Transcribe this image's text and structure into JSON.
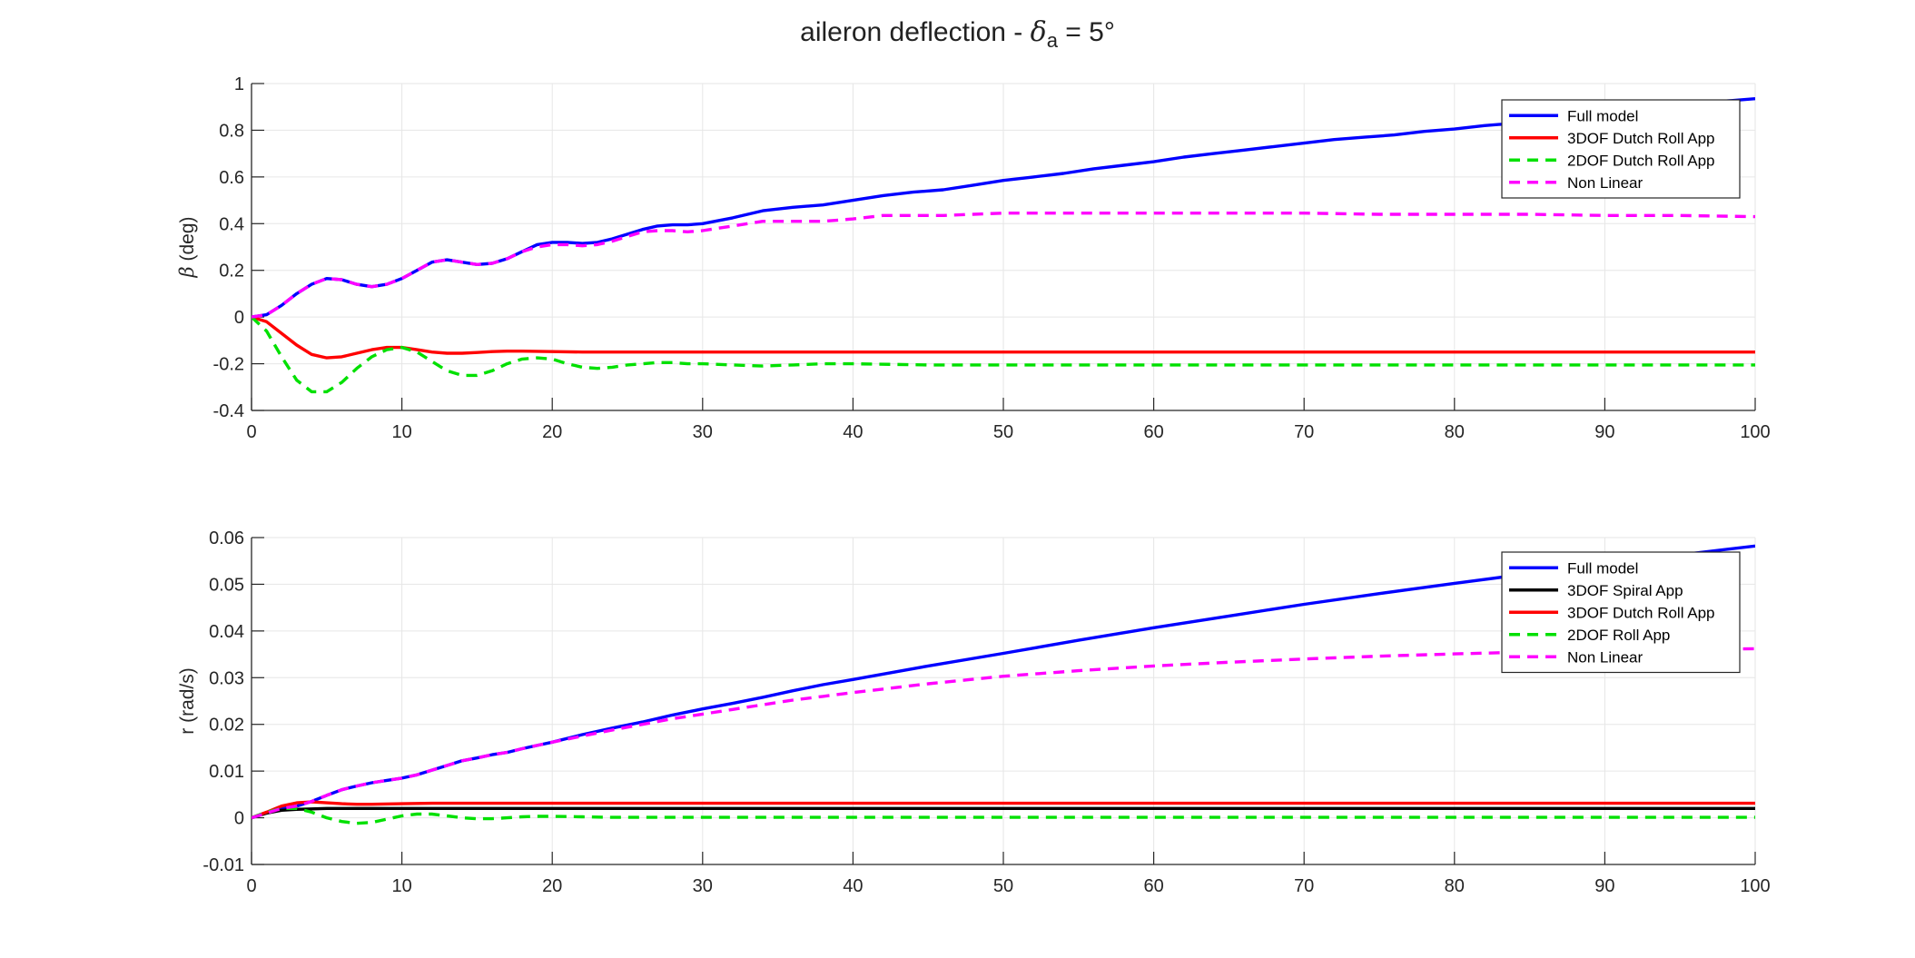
{
  "figure": {
    "title_text": "aileron deflection - ",
    "title_symbol": "δ",
    "title_subscript": "a",
    "title_suffix": " = 5°"
  },
  "chart_data": [
    {
      "type": "line",
      "xlabel": "",
      "ylabel_symbol": "β",
      "ylabel": " (deg)",
      "xlim": [
        0,
        100
      ],
      "ylim": [
        -0.4,
        1
      ],
      "xticks": [
        "0",
        "10",
        "20",
        "30",
        "40",
        "50",
        "60",
        "70",
        "80",
        "90",
        "100"
      ],
      "yticks": [
        "-0.4",
        "-0.2",
        "0",
        "0.2",
        "0.4",
        "0.6",
        "0.8",
        "1"
      ],
      "grid": true,
      "legend_position": "top-right",
      "series": [
        {
          "name": "Full model",
          "color": "#0000ff",
          "dash": false,
          "x": [
            0,
            1,
            2,
            3,
            4,
            5,
            6,
            7,
            8,
            9,
            10,
            11,
            12,
            13,
            14,
            15,
            16,
            17,
            18,
            19,
            20,
            21,
            22,
            23,
            24,
            25,
            26,
            27,
            28,
            29,
            30,
            32,
            34,
            36,
            38,
            40,
            42,
            44,
            46,
            48,
            50,
            52,
            54,
            56,
            58,
            60,
            62,
            64,
            66,
            68,
            70,
            72,
            74,
            76,
            78,
            80,
            82,
            84,
            86,
            88,
            90,
            92,
            94,
            96,
            98,
            100
          ],
          "y": [
            0,
            0.01,
            0.05,
            0.1,
            0.14,
            0.165,
            0.16,
            0.14,
            0.13,
            0.14,
            0.165,
            0.2,
            0.235,
            0.245,
            0.235,
            0.225,
            0.23,
            0.25,
            0.28,
            0.31,
            0.32,
            0.32,
            0.315,
            0.32,
            0.335,
            0.355,
            0.375,
            0.39,
            0.395,
            0.395,
            0.4,
            0.425,
            0.455,
            0.47,
            0.48,
            0.5,
            0.52,
            0.535,
            0.545,
            0.565,
            0.585,
            0.6,
            0.615,
            0.635,
            0.65,
            0.665,
            0.685,
            0.7,
            0.715,
            0.73,
            0.745,
            0.76,
            0.77,
            0.78,
            0.795,
            0.805,
            0.82,
            0.83,
            0.845,
            0.86,
            0.87,
            0.885,
            0.9,
            0.91,
            0.925,
            0.935
          ]
        },
        {
          "name": "3DOF Dutch Roll App",
          "color": "#ff0000",
          "dash": false,
          "x": [
            0,
            1,
            2,
            3,
            4,
            5,
            6,
            7,
            8,
            9,
            10,
            11,
            12,
            13,
            14,
            15,
            16,
            17,
            18,
            20,
            22,
            25,
            30,
            40,
            50,
            60,
            70,
            80,
            90,
            100
          ],
          "y": [
            0,
            -0.02,
            -0.07,
            -0.12,
            -0.16,
            -0.175,
            -0.17,
            -0.155,
            -0.14,
            -0.13,
            -0.13,
            -0.14,
            -0.15,
            -0.155,
            -0.155,
            -0.152,
            -0.148,
            -0.146,
            -0.146,
            -0.148,
            -0.15,
            -0.15,
            -0.15,
            -0.15,
            -0.15,
            -0.15,
            -0.15,
            -0.15,
            -0.15,
            -0.15
          ]
        },
        {
          "name": "2DOF Dutch Roll App",
          "color": "#00e000",
          "dash": true,
          "x": [
            0,
            1,
            2,
            3,
            4,
            5,
            6,
            7,
            8,
            9,
            10,
            11,
            12,
            13,
            14,
            15,
            16,
            17,
            18,
            19,
            20,
            21,
            22,
            23,
            24,
            25,
            26,
            27,
            28,
            29,
            30,
            32,
            34,
            36,
            38,
            40,
            45,
            50,
            60,
            70,
            80,
            90,
            100
          ],
          "y": [
            0,
            -0.06,
            -0.17,
            -0.27,
            -0.32,
            -0.32,
            -0.28,
            -0.22,
            -0.17,
            -0.14,
            -0.13,
            -0.15,
            -0.19,
            -0.23,
            -0.25,
            -0.25,
            -0.23,
            -0.2,
            -0.18,
            -0.175,
            -0.18,
            -0.2,
            -0.215,
            -0.22,
            -0.215,
            -0.205,
            -0.2,
            -0.195,
            -0.195,
            -0.2,
            -0.2,
            -0.205,
            -0.21,
            -0.205,
            -0.2,
            -0.2,
            -0.205,
            -0.205,
            -0.205,
            -0.205,
            -0.205,
            -0.205,
            -0.205
          ]
        },
        {
          "name": "Non Linear",
          "color": "#ff00ff",
          "dash": true,
          "x": [
            0,
            1,
            2,
            3,
            4,
            5,
            6,
            7,
            8,
            9,
            10,
            11,
            12,
            13,
            14,
            15,
            16,
            17,
            18,
            19,
            20,
            21,
            22,
            23,
            24,
            25,
            26,
            27,
            28,
            29,
            30,
            32,
            34,
            36,
            38,
            40,
            42,
            44,
            46,
            48,
            50,
            52,
            55,
            60,
            65,
            70,
            75,
            80,
            85,
            90,
            95,
            100
          ],
          "y": [
            0,
            0.01,
            0.05,
            0.1,
            0.14,
            0.165,
            0.16,
            0.14,
            0.13,
            0.14,
            0.165,
            0.2,
            0.235,
            0.245,
            0.235,
            0.225,
            0.23,
            0.25,
            0.28,
            0.3,
            0.31,
            0.31,
            0.305,
            0.31,
            0.325,
            0.345,
            0.365,
            0.37,
            0.37,
            0.365,
            0.37,
            0.39,
            0.41,
            0.41,
            0.41,
            0.42,
            0.435,
            0.435,
            0.435,
            0.44,
            0.445,
            0.445,
            0.445,
            0.445,
            0.445,
            0.445,
            0.44,
            0.44,
            0.44,
            0.435,
            0.435,
            0.43
          ]
        }
      ]
    },
    {
      "type": "line",
      "xlabel": "",
      "ylabel_symbol": "",
      "ylabel": "r (rad/s)",
      "xlim": [
        0,
        100
      ],
      "ylim": [
        -0.01,
        0.06
      ],
      "xticks": [
        "0",
        "10",
        "20",
        "30",
        "40",
        "50",
        "60",
        "70",
        "80",
        "90",
        "100"
      ],
      "yticks": [
        "-0.01",
        "0",
        "0.01",
        "0.02",
        "0.03",
        "0.04",
        "0.05",
        "0.06"
      ],
      "grid": true,
      "legend_position": "top-right",
      "series": [
        {
          "name": "Full model",
          "color": "#0000ff",
          "dash": false,
          "x": [
            0,
            1,
            2,
            3,
            4,
            5,
            6,
            7,
            8,
            9,
            10,
            11,
            12,
            13,
            14,
            15,
            16,
            17,
            18,
            19,
            20,
            22,
            24,
            26,
            28,
            30,
            32,
            34,
            36,
            38,
            40,
            45,
            50,
            55,
            60,
            65,
            70,
            75,
            80,
            85,
            90,
            95,
            100
          ],
          "y": [
            0,
            0.001,
            0.002,
            0.0025,
            0.0035,
            0.0048,
            0.006,
            0.0068,
            0.0075,
            0.008,
            0.0085,
            0.0092,
            0.0102,
            0.0112,
            0.0122,
            0.0128,
            0.0135,
            0.014,
            0.0148,
            0.0155,
            0.0162,
            0.0178,
            0.0192,
            0.0205,
            0.022,
            0.0233,
            0.0245,
            0.0258,
            0.0272,
            0.0285,
            0.0296,
            0.0325,
            0.0352,
            0.038,
            0.0407,
            0.0432,
            0.0457,
            0.048,
            0.0502,
            0.0523,
            0.0543,
            0.0563,
            0.0582
          ]
        },
        {
          "name": "3DOF Spiral App",
          "color": "#000000",
          "dash": false,
          "x": [
            0,
            1,
            2,
            3,
            4,
            5,
            10,
            20,
            30,
            40,
            50,
            60,
            70,
            80,
            90,
            100
          ],
          "y": [
            0,
            0.001,
            0.0016,
            0.0018,
            0.0019,
            0.002,
            0.002,
            0.002,
            0.002,
            0.002,
            0.002,
            0.002,
            0.002,
            0.002,
            0.002,
            0.002
          ]
        },
        {
          "name": "3DOF Dutch Roll App",
          "color": "#ff0000",
          "dash": false,
          "x": [
            0,
            1,
            2,
            3,
            4,
            5,
            6,
            7,
            8,
            10,
            12,
            15,
            20,
            30,
            40,
            50,
            60,
            70,
            80,
            90,
            100
          ],
          "y": [
            0,
            0.0012,
            0.0025,
            0.0032,
            0.0034,
            0.0032,
            0.003,
            0.0029,
            0.0029,
            0.003,
            0.0031,
            0.0031,
            0.0031,
            0.0031,
            0.0031,
            0.0031,
            0.0031,
            0.0031,
            0.0031,
            0.0031,
            0.0031
          ]
        },
        {
          "name": "2DOF Roll App",
          "color": "#00e000",
          "dash": true,
          "x": [
            0,
            1,
            2,
            3,
            4,
            5,
            6,
            7,
            8,
            9,
            10,
            11,
            12,
            13,
            14,
            15,
            16,
            17,
            18,
            19,
            20,
            22,
            24,
            26,
            28,
            30,
            40,
            50,
            60,
            70,
            80,
            90,
            100
          ],
          "y": [
            0,
            0.0012,
            0.002,
            0.002,
            0.0012,
            0,
            -0.0008,
            -0.0012,
            -0.001,
            -0.0003,
            0.0004,
            0.0008,
            0.0008,
            0.0004,
            0,
            -0.0002,
            -0.0002,
            0,
            0.0002,
            0.0003,
            0.0003,
            0.0002,
            0.0001,
            0.0001,
            0.0001,
            0.0001,
            0.0001,
            0.0001,
            0.0001,
            0.0001,
            0.0001,
            0.0001,
            0.0001
          ]
        },
        {
          "name": "Non Linear",
          "color": "#ff00ff",
          "dash": true,
          "x": [
            0,
            1,
            2,
            3,
            4,
            5,
            6,
            7,
            8,
            9,
            10,
            11,
            12,
            13,
            14,
            15,
            16,
            17,
            18,
            19,
            20,
            22,
            24,
            26,
            28,
            30,
            32,
            34,
            36,
            38,
            40,
            45,
            50,
            55,
            60,
            65,
            70,
            75,
            80,
            85,
            90,
            95,
            100
          ],
          "y": [
            0,
            0.001,
            0.002,
            0.0025,
            0.0035,
            0.0048,
            0.006,
            0.0068,
            0.0075,
            0.008,
            0.0085,
            0.0092,
            0.0102,
            0.0112,
            0.0122,
            0.0128,
            0.0135,
            0.014,
            0.0148,
            0.0155,
            0.0162,
            0.0175,
            0.0188,
            0.02,
            0.0212,
            0.0222,
            0.0232,
            0.0242,
            0.0252,
            0.026,
            0.0268,
            0.0287,
            0.0303,
            0.0315,
            0.0325,
            0.0333,
            0.034,
            0.0346,
            0.0351,
            0.0355,
            0.0358,
            0.036,
            0.0362
          ]
        }
      ]
    }
  ]
}
